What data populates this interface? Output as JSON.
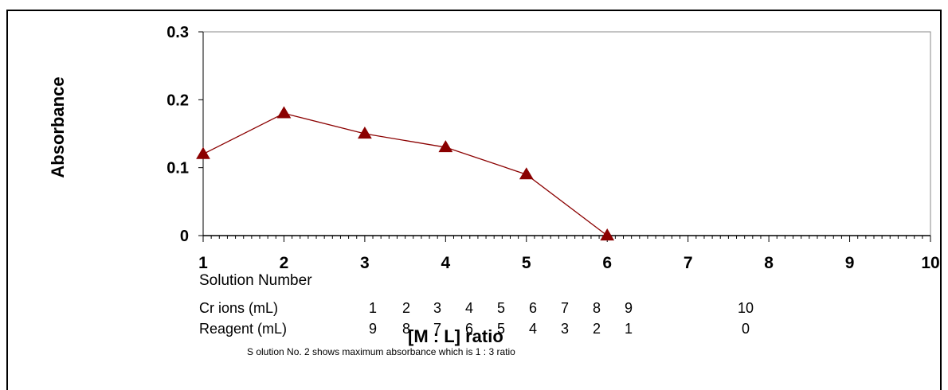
{
  "chart_data": {
    "type": "line",
    "title": "",
    "xlabel": "Solution Number",
    "ylabel": "Absorbance",
    "xlim": [
      1,
      10
    ],
    "ylim": [
      0,
      0.3
    ],
    "x_ticks": [
      "1",
      "2",
      "3",
      "4",
      "5",
      "6",
      "7",
      "8",
      "9",
      "10"
    ],
    "y_ticks": [
      "0",
      "0.1",
      "0.2",
      "0.3"
    ],
    "series": [
      {
        "color": "#8b0000",
        "marker": "triangle",
        "x": [
          1,
          2,
          3,
          4,
          5,
          6
        ],
        "y": [
          0.12,
          0.18,
          0.15,
          0.13,
          0.09,
          0
        ]
      }
    ]
  },
  "table": {
    "rows": [
      {
        "label": "Cr ions  (mL)",
        "values": [
          "1",
          "2",
          "3",
          "4",
          "5",
          "6",
          "7",
          "8",
          "9",
          "10"
        ]
      },
      {
        "label": "Reagent (mL)",
        "values": [
          "9",
          "8",
          "7",
          "6",
          "5",
          "4",
          "3",
          "2",
          "1",
          "0"
        ]
      }
    ]
  },
  "ratio_label": "[M : L]  ratio",
  "note": "S olution No. 2 shows maximum absorbance which is 1 : 3 ratio"
}
